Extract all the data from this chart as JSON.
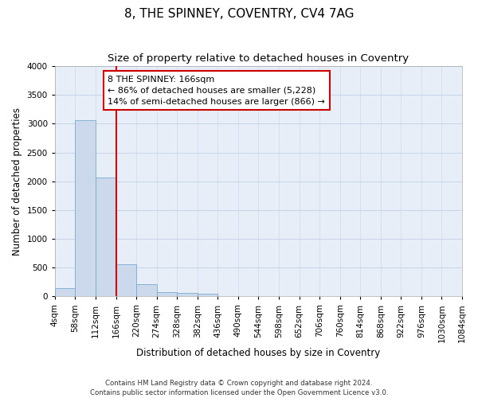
{
  "title": "8, THE SPINNEY, COVENTRY, CV4 7AG",
  "subtitle": "Size of property relative to detached houses in Coventry",
  "xlabel": "Distribution of detached houses by size in Coventry",
  "ylabel": "Number of detached properties",
  "footer_line1": "Contains HM Land Registry data © Crown copyright and database right 2024.",
  "footer_line2": "Contains public sector information licensed under the Open Government Licence v3.0.",
  "bar_edges": [
    4,
    58,
    112,
    166,
    220,
    274,
    328,
    382,
    436,
    490,
    544,
    598,
    652,
    706,
    760,
    814,
    868,
    922,
    976,
    1030,
    1084
  ],
  "bar_heights": [
    150,
    3060,
    2060,
    560,
    210,
    75,
    55,
    45,
    0,
    0,
    0,
    0,
    0,
    0,
    0,
    0,
    0,
    0,
    0,
    0
  ],
  "bar_color": "#ccd9ec",
  "bar_edge_color": "#7aaace",
  "vline_x": 166,
  "vline_color": "#cc0000",
  "annotation_text": "8 THE SPINNEY: 166sqm\n← 86% of detached houses are smaller (5,228)\n14% of semi-detached houses are larger (866) →",
  "annotation_box_color": "white",
  "annotation_box_edge_color": "#cc0000",
  "ylim": [
    0,
    4000
  ],
  "yticks": [
    0,
    500,
    1000,
    1500,
    2000,
    2500,
    3000,
    3500,
    4000
  ],
  "grid_color": "#c8d4e8",
  "background_color": "#e8eef8",
  "title_fontsize": 11,
  "subtitle_fontsize": 9.5,
  "axis_label_fontsize": 8.5,
  "tick_fontsize": 7.5,
  "annotation_fontsize": 8
}
